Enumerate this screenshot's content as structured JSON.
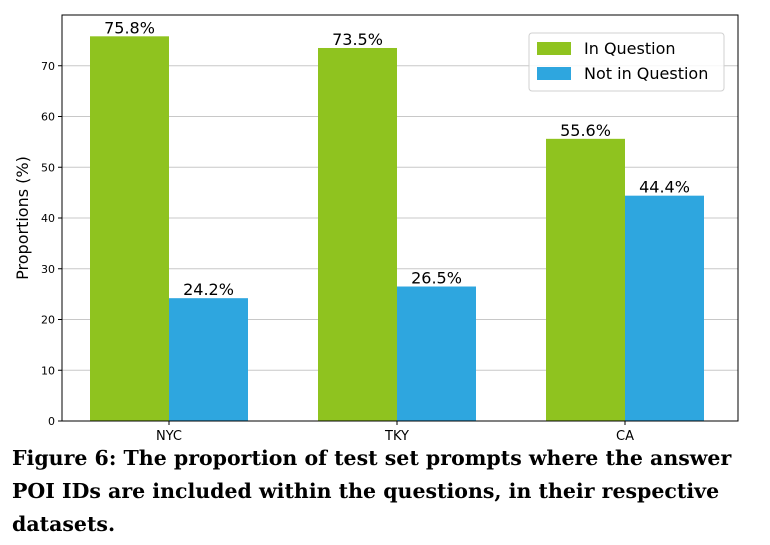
{
  "chart_data": {
    "type": "bar",
    "categories": [
      "NYC",
      "TKY",
      "CA"
    ],
    "series": [
      {
        "name": "In Question",
        "values": [
          75.8,
          73.5,
          55.6
        ],
        "labels": [
          "75.8%",
          "73.5%",
          "55.6%"
        ],
        "color": "#8fc31f"
      },
      {
        "name": "Not in Question",
        "values": [
          24.2,
          26.5,
          44.4
        ],
        "labels": [
          "24.2%",
          "26.5%",
          "44.4%"
        ],
        "color": "#2ea6df"
      }
    ],
    "ylabel": "Proportions (%)",
    "ylim": [
      0,
      80
    ],
    "yticks": [
      0,
      10,
      20,
      30,
      40,
      50,
      60,
      70
    ],
    "grid": "horizontal",
    "legend_position": "top-right"
  },
  "caption": "Figure 6: The proportion of test set prompts where the answer POI IDs are included within the questions, in their respective datasets."
}
